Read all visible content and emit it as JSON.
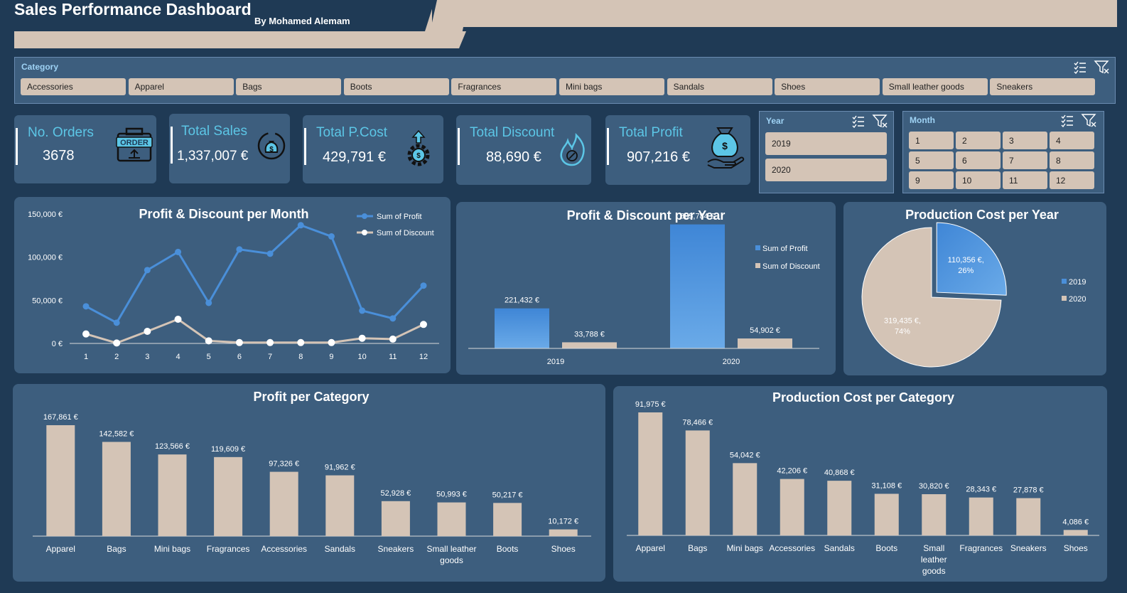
{
  "header": {
    "title": "Sales Performance Dashboard",
    "subtitle": "By Mohamed Alemam"
  },
  "category_slicer": {
    "title": "Category",
    "items": [
      "Accessories",
      "Apparel",
      "Bags",
      "Boots",
      "Fragrances",
      "Mini bags",
      "Sandals",
      "Shoes",
      "Small leather goods",
      "Sneakers"
    ]
  },
  "kpis": {
    "orders": {
      "label": "No. Orders",
      "value": "3678"
    },
    "sales": {
      "label": "Total Sales",
      "value": "1,337,007 €"
    },
    "pcost": {
      "label": "Total P.Cost",
      "value": "429,791 €"
    },
    "discount": {
      "label": "Total Discount",
      "value": "88,690 €"
    },
    "profit": {
      "label": "Total Profit",
      "value": "907,216 €"
    }
  },
  "year_slicer": {
    "title": "Year",
    "items": [
      "2019",
      "2020"
    ]
  },
  "month_slicer": {
    "title": "Month",
    "items": [
      "1",
      "2",
      "3",
      "4",
      "5",
      "6",
      "7",
      "8",
      "9",
      "10",
      "11",
      "12"
    ]
  },
  "icons": {
    "orders": "order-box-icon",
    "sales": "money-bag-cycle-icon",
    "pcost": "gear-cost-icon",
    "discount": "discount-flame-icon",
    "profit": "money-bag-hand-icon",
    "multi_select": "multi-select-icon",
    "clear_filter": "clear-filter-icon"
  },
  "colors": {
    "profit": "#4a8fd9",
    "discount": "#d4c4b6",
    "panel": "#3d5e7e",
    "background": "#1f3a55",
    "accent": "#5cc6e6"
  },
  "chart_data": [
    {
      "id": "month",
      "type": "line",
      "title": "Profit & Discount per Month",
      "x": [
        1,
        2,
        3,
        4,
        5,
        6,
        7,
        8,
        9,
        10,
        11,
        12
      ],
      "ylim": [
        0,
        150000
      ],
      "yticks": [
        "0 €",
        "50,000 €",
        "100,000 €",
        "150,000 €"
      ],
      "legend_position": "top-right",
      "series": [
        {
          "name": "Sum of Profit",
          "values": [
            43000,
            24000,
            85000,
            106000,
            47000,
            109000,
            104000,
            137000,
            124000,
            38000,
            29000,
            67000
          ]
        },
        {
          "name": "Sum of Discount",
          "values": [
            11000,
            500,
            14000,
            28000,
            3000,
            1000,
            1000,
            1000,
            1000,
            6000,
            5000,
            22000
          ]
        }
      ]
    },
    {
      "id": "year",
      "type": "bar",
      "title": "Profit & Discount per Year",
      "categories": [
        "2019",
        "2020"
      ],
      "ylim": [
        0,
        700000
      ],
      "legend_position": "top-right",
      "series": [
        {
          "name": "Sum of Profit",
          "values": [
            221432,
            685784
          ],
          "labels": [
            "221,432 €",
            "685,784 €"
          ]
        },
        {
          "name": "Sum of Discount",
          "values": [
            33788,
            54902
          ],
          "labels": [
            "33,788 €",
            "54,902 €"
          ]
        }
      ]
    },
    {
      "id": "pcost_year",
      "type": "pie",
      "title": "Production Cost per Year",
      "categories": [
        "2019",
        "2020"
      ],
      "values": [
        110356,
        319435
      ],
      "labels": [
        "110,356 €,",
        "319,435 €,"
      ],
      "percent_labels": [
        "26%",
        "74%"
      ],
      "legend_position": "right"
    },
    {
      "id": "profit_cat",
      "type": "bar",
      "title": "Profit per Category",
      "categories": [
        "Apparel",
        "Bags",
        "Mini bags",
        "Fragrances",
        "Accessories",
        "Sandals",
        "Sneakers",
        "Small leather goods",
        "Boots",
        "Shoes"
      ],
      "values": [
        167861,
        142582,
        123566,
        119609,
        97326,
        91962,
        52928,
        50993,
        50217,
        10172
      ],
      "labels": [
        "167,861 €",
        "142,582 €",
        "123,566 €",
        "119,609 €",
        "97,326 €",
        "91,962 €",
        "52,928 €",
        "50,993 €",
        "50,217 €",
        "10,172 €"
      ]
    },
    {
      "id": "pcost_cat",
      "type": "bar",
      "title": "Production Cost per Category",
      "categories": [
        "Apparel",
        "Bags",
        "Mini bags",
        "Accessories",
        "Sandals",
        "Boots",
        "Small leather goods",
        "Fragrances",
        "Sneakers",
        "Shoes"
      ],
      "values": [
        91975,
        78466,
        54042,
        42206,
        40868,
        31108,
        30820,
        28343,
        27878,
        4086
      ],
      "labels": [
        "91,975 €",
        "78,466 €",
        "54,042 €",
        "42,206 €",
        "40,868 €",
        "31,108 €",
        "30,820 €",
        "28,343 €",
        "27,878 €",
        "4,086 €"
      ]
    }
  ]
}
